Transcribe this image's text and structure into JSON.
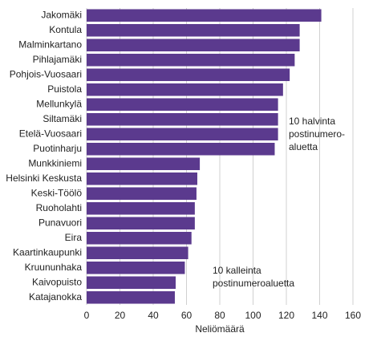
{
  "chart_data": {
    "type": "bar",
    "orientation": "horizontal",
    "categories": [
      "Jakomäki",
      "Kontula",
      "Malminkartano",
      "Pihlajamäki",
      "Pohjois-Vuosaari",
      "Puistola",
      "Mellunkylä",
      "Siltamäki",
      "Etelä-Vuosaari",
      "Puotinharju",
      "Munkkiniemi",
      "Helsinki Keskusta",
      "Keski-Töölö",
      "Ruoholahti",
      "Punavuori",
      "Eira",
      "Kaartinkaupunki",
      "Kruununhaka",
      "Kaivopuisto",
      "Katajanokka"
    ],
    "values": [
      141,
      128,
      128,
      125,
      122,
      118,
      115,
      115,
      115,
      113,
      68,
      66.5,
      66,
      65,
      65,
      63,
      61,
      59,
      53.5,
      53
    ],
    "color": "#5b3a8e",
    "xlim": [
      0,
      160
    ],
    "xticks": [
      0,
      20,
      40,
      60,
      80,
      100,
      120,
      140,
      160
    ],
    "x_label": "Neliömäärä",
    "grid": true,
    "annotations": [
      [
        "10 halvinta",
        "postinumero-",
        "aluetta"
      ],
      [
        "10 kalleinta",
        "postinumeroaluetta"
      ]
    ]
  }
}
